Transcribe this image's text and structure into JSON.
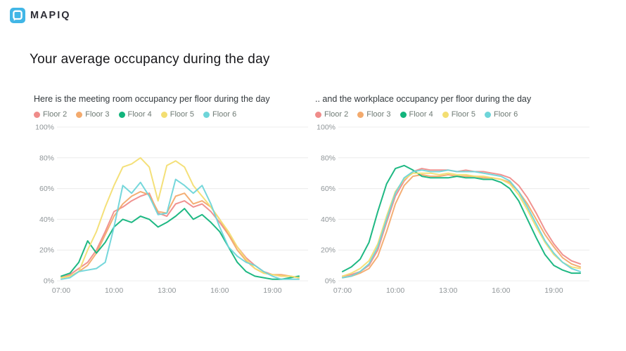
{
  "brand": {
    "name": "MAPIQ",
    "logo_color": "#41b6e6"
  },
  "page_title": "Your average occupancy during the day",
  "chart_data": [
    {
      "type": "line",
      "title": "Here is the meeting room occupancy per floor during the day",
      "xlabel": "",
      "ylabel": "",
      "ylim": [
        0,
        100
      ],
      "xlim": [
        7,
        20.9
      ],
      "grid": true,
      "legend_position": "top-left",
      "y_ticks": [
        {
          "value": 0,
          "label": "0%"
        },
        {
          "value": 20,
          "label": "20%"
        },
        {
          "value": 40,
          "label": "40%"
        },
        {
          "value": 60,
          "label": "60%"
        },
        {
          "value": 80,
          "label": "80%"
        },
        {
          "value": 100,
          "label": "100%"
        }
      ],
      "x_ticks": [
        {
          "value": 7,
          "label": "07:00"
        },
        {
          "value": 10,
          "label": "10:00"
        },
        {
          "value": 13,
          "label": "13:00"
        },
        {
          "value": 16,
          "label": "16:00"
        },
        {
          "value": 19,
          "label": "19:00"
        }
      ],
      "x": [
        7,
        7.5,
        8,
        8.5,
        9,
        9.5,
        10,
        10.5,
        11,
        11.5,
        12,
        12.5,
        13,
        13.5,
        14,
        14.5,
        15,
        15.5,
        16,
        16.5,
        17,
        17.5,
        18,
        18.5,
        19,
        19.5,
        20,
        20.5
      ],
      "series": [
        {
          "name": "Floor 2",
          "color": "#ef8c8a",
          "values": [
            2,
            4,
            8,
            12,
            20,
            32,
            45,
            48,
            52,
            55,
            57,
            44,
            42,
            50,
            52,
            48,
            50,
            45,
            38,
            30,
            22,
            15,
            10,
            6,
            4,
            3,
            3,
            2
          ]
        },
        {
          "name": "Floor 3",
          "color": "#f3aa6d",
          "values": [
            2,
            3,
            6,
            10,
            18,
            30,
            42,
            50,
            55,
            58,
            56,
            45,
            44,
            55,
            57,
            50,
            52,
            48,
            40,
            30,
            20,
            13,
            8,
            5,
            4,
            4,
            3,
            2
          ]
        },
        {
          "name": "Floor 4",
          "color": "#12b47c",
          "values": [
            3,
            5,
            12,
            26,
            18,
            25,
            35,
            40,
            38,
            42,
            40,
            35,
            38,
            42,
            47,
            40,
            43,
            38,
            32,
            22,
            12,
            6,
            3,
            2,
            1,
            1,
            2,
            3
          ]
        },
        {
          "name": "Floor 5",
          "color": "#f3de72",
          "values": [
            2,
            3,
            6,
            20,
            32,
            48,
            62,
            74,
            76,
            80,
            74,
            52,
            75,
            78,
            74,
            62,
            55,
            48,
            40,
            32,
            22,
            14,
            8,
            5,
            4,
            3,
            3,
            2
          ]
        },
        {
          "name": "Floor 6",
          "color": "#6ed5d9",
          "values": [
            1,
            2,
            6,
            7,
            8,
            12,
            35,
            62,
            57,
            64,
            55,
            43,
            44,
            66,
            62,
            57,
            62,
            50,
            35,
            22,
            16,
            12,
            10,
            6,
            3,
            1,
            1,
            1
          ]
        }
      ]
    },
    {
      "type": "line",
      "title": ".. and the workplace occupancy per floor during the day",
      "xlabel": "",
      "ylabel": "",
      "ylim": [
        0,
        100
      ],
      "xlim": [
        7,
        20.9
      ],
      "grid": true,
      "legend_position": "top-left",
      "y_ticks": [
        {
          "value": 0,
          "label": "0%"
        },
        {
          "value": 20,
          "label": "20%"
        },
        {
          "value": 40,
          "label": "40%"
        },
        {
          "value": 60,
          "label": "60%"
        },
        {
          "value": 80,
          "label": "80%"
        },
        {
          "value": 100,
          "label": "100%"
        }
      ],
      "x_ticks": [
        {
          "value": 7,
          "label": "07:00"
        },
        {
          "value": 10,
          "label": "10:00"
        },
        {
          "value": 13,
          "label": "13:00"
        },
        {
          "value": 16,
          "label": "16:00"
        },
        {
          "value": 19,
          "label": "19:00"
        }
      ],
      "x": [
        7,
        7.5,
        8,
        8.5,
        9,
        9.5,
        10,
        10.5,
        11,
        11.5,
        12,
        12.5,
        13,
        13.5,
        14,
        14.5,
        15,
        15.5,
        16,
        16.5,
        17,
        17.5,
        18,
        18.5,
        19,
        19.5,
        20,
        20.5
      ],
      "series": [
        {
          "name": "Floor 2",
          "color": "#ef8c8a",
          "values": [
            3,
            4,
            6,
            10,
            20,
            38,
            55,
            65,
            71,
            73,
            72,
            72,
            72,
            71,
            72,
            71,
            71,
            70,
            69,
            67,
            62,
            54,
            44,
            33,
            24,
            17,
            13,
            11
          ]
        },
        {
          "name": "Floor 3",
          "color": "#f3aa6d",
          "values": [
            2,
            3,
            5,
            8,
            16,
            32,
            50,
            62,
            68,
            69,
            68,
            68,
            69,
            68,
            68,
            68,
            67,
            67,
            66,
            64,
            58,
            50,
            40,
            30,
            22,
            15,
            11,
            9
          ]
        },
        {
          "name": "Floor 4",
          "color": "#12b47c",
          "values": [
            6,
            9,
            14,
            25,
            45,
            63,
            73,
            75,
            72,
            68,
            67,
            67,
            67,
            68,
            67,
            67,
            66,
            66,
            64,
            60,
            52,
            40,
            28,
            17,
            10,
            7,
            5,
            5
          ]
        },
        {
          "name": "Floor 5",
          "color": "#f3de72",
          "values": [
            3,
            5,
            8,
            13,
            24,
            42,
            58,
            66,
            70,
            70,
            70,
            69,
            70,
            69,
            69,
            68,
            68,
            67,
            66,
            63,
            56,
            46,
            35,
            25,
            17,
            12,
            9,
            8
          ]
        },
        {
          "name": "Floor 6",
          "color": "#6ed5d9",
          "values": [
            2,
            3,
            6,
            11,
            22,
            40,
            57,
            67,
            71,
            72,
            71,
            71,
            72,
            71,
            71,
            71,
            70,
            69,
            68,
            65,
            58,
            48,
            37,
            26,
            18,
            12,
            8,
            6
          ]
        }
      ]
    }
  ]
}
